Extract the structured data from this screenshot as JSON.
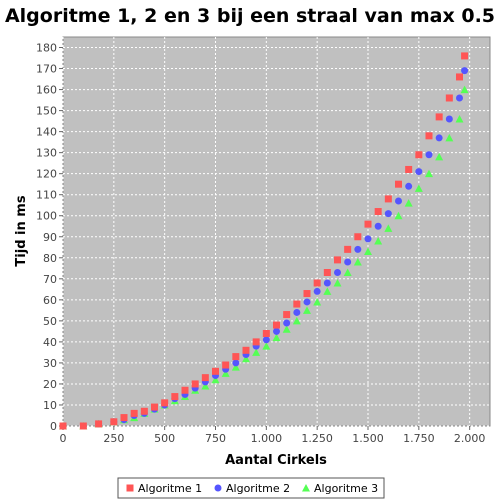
{
  "chart_data": {
    "type": "scatter",
    "title": "Algoritme 1, 2 en 3 bij een straal van max 0.5",
    "xlabel": "Aantal Cirkels",
    "ylabel": "Tijd in ms",
    "xlim": [
      0,
      2100
    ],
    "ylim": [
      0,
      185
    ],
    "xticks": [
      0,
      250,
      500,
      750,
      1000,
      1250,
      1500,
      1750,
      2000
    ],
    "xtick_labels": [
      "0",
      "250",
      "500",
      "750",
      "1.000",
      "1.250",
      "1.500",
      "1.750",
      "2.000"
    ],
    "yticks": [
      0,
      10,
      20,
      30,
      40,
      50,
      60,
      70,
      80,
      90,
      100,
      110,
      120,
      130,
      140,
      150,
      160,
      170,
      180
    ],
    "ytick_labels": [
      "0",
      "10",
      "20",
      "30",
      "40",
      "50",
      "60",
      "70",
      "80",
      "90",
      "100",
      "110",
      "120",
      "130",
      "140",
      "150",
      "160",
      "170",
      "180"
    ],
    "grid": true,
    "legend_position": "bottom",
    "background_color": "#c0c0c0",
    "series": [
      {
        "name": "Algoritme 1",
        "marker": "square",
        "color": "#ff5555",
        "x": [
          0,
          100,
          175,
          250,
          300,
          350,
          400,
          450,
          500,
          550,
          600,
          650,
          700,
          750,
          800,
          850,
          900,
          950,
          1000,
          1050,
          1100,
          1150,
          1200,
          1250,
          1300,
          1350,
          1400,
          1450,
          1500,
          1550,
          1600,
          1650,
          1700,
          1750,
          1800,
          1850,
          1900,
          1950,
          1975
        ],
        "y": [
          0,
          0,
          1,
          2,
          4,
          6,
          7,
          9,
          11,
          14,
          17,
          20,
          23,
          26,
          29,
          33,
          36,
          40,
          44,
          48,
          53,
          58,
          63,
          68,
          73,
          79,
          84,
          90,
          96,
          102,
          108,
          115,
          122,
          129,
          138,
          147,
          156,
          166,
          176
        ]
      },
      {
        "name": "Algoritme 2",
        "marker": "circle",
        "color": "#5555ff",
        "x": [
          0,
          100,
          175,
          250,
          300,
          350,
          400,
          450,
          500,
          550,
          600,
          650,
          700,
          750,
          800,
          850,
          900,
          950,
          1000,
          1050,
          1100,
          1150,
          1200,
          1250,
          1300,
          1350,
          1400,
          1450,
          1500,
          1550,
          1600,
          1650,
          1700,
          1750,
          1800,
          1850,
          1900,
          1950,
          1975
        ],
        "y": [
          0,
          0,
          1,
          2,
          3,
          5,
          6,
          8,
          10,
          13,
          15,
          18,
          21,
          24,
          27,
          30,
          34,
          38,
          41,
          45,
          49,
          54,
          59,
          64,
          68,
          73,
          78,
          84,
          89,
          95,
          101,
          107,
          114,
          121,
          129,
          137,
          146,
          156,
          169
        ]
      },
      {
        "name": "Algoritme 3",
        "marker": "triangle",
        "color": "#55ff55",
        "x": [
          0,
          100,
          175,
          250,
          300,
          350,
          400,
          450,
          500,
          550,
          600,
          650,
          700,
          750,
          800,
          850,
          900,
          950,
          1000,
          1050,
          1100,
          1150,
          1200,
          1250,
          1300,
          1350,
          1400,
          1450,
          1500,
          1550,
          1600,
          1650,
          1700,
          1750,
          1800,
          1850,
          1900,
          1950,
          1975
        ],
        "y": [
          0,
          0,
          1,
          2,
          3,
          4,
          6,
          8,
          10,
          12,
          14,
          17,
          19,
          22,
          25,
          28,
          32,
          35,
          38,
          42,
          46,
          50,
          55,
          59,
          64,
          68,
          73,
          78,
          83,
          88,
          94,
          100,
          106,
          113,
          120,
          128,
          137,
          146,
          160
        ]
      }
    ]
  }
}
